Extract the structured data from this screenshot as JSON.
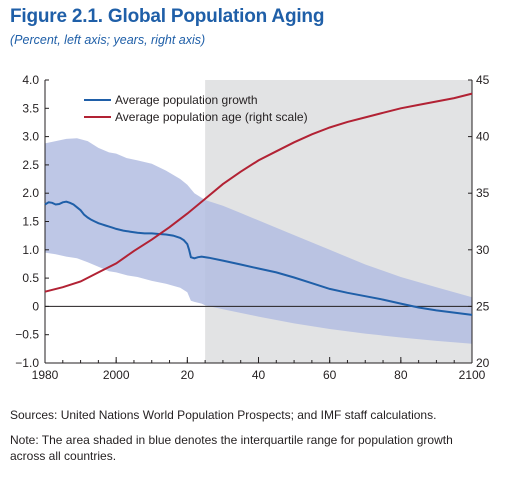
{
  "title": "Figure 2.1.  Global Population Aging",
  "subtitle": "(Percent, left axis; years, right axis)",
  "sources": "Sources: United Nations World Population Prospects; and IMF staff calculations.",
  "note": "Note: The area shaded in blue denotes the interquartile range for population growth across all countries.",
  "colors": {
    "growth": "#1f5fa8",
    "age": "#b22234",
    "band": "#b3bde2",
    "projection_shade": "#e2e3e4",
    "zero_line": "#231f20"
  },
  "chart_data": {
    "type": "line",
    "x_start": 1980,
    "x_end": 2100,
    "projection_start": 2025,
    "x_ticks": [
      {
        "x": 1980,
        "label": "1980"
      },
      {
        "x": 2000,
        "label": "2000"
      },
      {
        "x": 2020,
        "label": "20"
      },
      {
        "x": 2040,
        "label": "40"
      },
      {
        "x": 2060,
        "label": "60"
      },
      {
        "x": 2080,
        "label": "80"
      },
      {
        "x": 2100,
        "label": "2100"
      }
    ],
    "y_left": {
      "min": -1.0,
      "max": 4.0,
      "ticks": [
        {
          "v": 4.0,
          "label": "4.0"
        },
        {
          "v": 3.5,
          "label": "3.5"
        },
        {
          "v": 3.0,
          "label": "3.0"
        },
        {
          "v": 2.5,
          "label": "2.5"
        },
        {
          "v": 2.0,
          "label": "2.0"
        },
        {
          "v": 1.5,
          "label": "1.5"
        },
        {
          "v": 1.0,
          "label": "1.0"
        },
        {
          "v": 0.5,
          "label": "0.5"
        },
        {
          "v": 0,
          "label": "0"
        },
        {
          "v": -0.5,
          "label": "−0.5"
        },
        {
          "v": -1.0,
          "label": "−1.0"
        }
      ]
    },
    "y_right": {
      "min": 20,
      "max": 45,
      "ticks": [
        {
          "v": 45,
          "label": "45"
        },
        {
          "v": 40,
          "label": "40"
        },
        {
          "v": 35,
          "label": "35"
        },
        {
          "v": 30,
          "label": "30"
        },
        {
          "v": 25,
          "label": "25"
        },
        {
          "v": 20,
          "label": "20"
        }
      ]
    },
    "legend": {
      "placement": "top-left"
    },
    "series": [
      {
        "name": "Average population growth",
        "axis": "left",
        "points": [
          [
            1980,
            1.8
          ],
          [
            1981,
            1.84
          ],
          [
            1982,
            1.83
          ],
          [
            1983,
            1.8
          ],
          [
            1984,
            1.81
          ],
          [
            1985,
            1.84
          ],
          [
            1986,
            1.85
          ],
          [
            1987,
            1.83
          ],
          [
            1988,
            1.8
          ],
          [
            1989,
            1.75
          ],
          [
            1990,
            1.7
          ],
          [
            1991,
            1.62
          ],
          [
            1992,
            1.57
          ],
          [
            1993,
            1.53
          ],
          [
            1994,
            1.5
          ],
          [
            1995,
            1.47
          ],
          [
            1996,
            1.45
          ],
          [
            1997,
            1.43
          ],
          [
            1998,
            1.41
          ],
          [
            1999,
            1.39
          ],
          [
            2000,
            1.37
          ],
          [
            2002,
            1.34
          ],
          [
            2004,
            1.32
          ],
          [
            2006,
            1.3
          ],
          [
            2008,
            1.29
          ],
          [
            2010,
            1.29
          ],
          [
            2012,
            1.28
          ],
          [
            2014,
            1.27
          ],
          [
            2016,
            1.25
          ],
          [
            2018,
            1.21
          ],
          [
            2019,
            1.17
          ],
          [
            2020,
            1.1
          ],
          [
            2020.5,
            1.0
          ],
          [
            2021,
            0.87
          ],
          [
            2022,
            0.85
          ],
          [
            2023,
            0.87
          ],
          [
            2024,
            0.88
          ],
          [
            2026,
            0.86
          ],
          [
            2030,
            0.81
          ],
          [
            2035,
            0.74
          ],
          [
            2040,
            0.67
          ],
          [
            2045,
            0.6
          ],
          [
            2050,
            0.51
          ],
          [
            2055,
            0.41
          ],
          [
            2060,
            0.31
          ],
          [
            2065,
            0.24
          ],
          [
            2070,
            0.18
          ],
          [
            2075,
            0.12
          ],
          [
            2080,
            0.05
          ],
          [
            2085,
            -0.02
          ],
          [
            2090,
            -0.07
          ],
          [
            2095,
            -0.11
          ],
          [
            2100,
            -0.15
          ]
        ]
      },
      {
        "name": "Average population age (right scale)",
        "axis": "right",
        "points": [
          [
            1980,
            26.3
          ],
          [
            1985,
            26.7
          ],
          [
            1990,
            27.2
          ],
          [
            1995,
            28.0
          ],
          [
            2000,
            28.8
          ],
          [
            2005,
            29.9
          ],
          [
            2010,
            30.9
          ],
          [
            2015,
            32.0
          ],
          [
            2020,
            33.2
          ],
          [
            2025,
            34.5
          ],
          [
            2030,
            35.8
          ],
          [
            2035,
            36.9
          ],
          [
            2040,
            37.9
          ],
          [
            2045,
            38.7
          ],
          [
            2050,
            39.5
          ],
          [
            2055,
            40.2
          ],
          [
            2060,
            40.8
          ],
          [
            2065,
            41.3
          ],
          [
            2070,
            41.7
          ],
          [
            2075,
            42.1
          ],
          [
            2080,
            42.5
          ],
          [
            2085,
            42.8
          ],
          [
            2090,
            43.1
          ],
          [
            2095,
            43.4
          ],
          [
            2100,
            43.8
          ]
        ]
      }
    ],
    "band": {
      "name": "Interquartile range for population growth",
      "axis": "left",
      "upper": [
        [
          1980,
          2.88
        ],
        [
          1983,
          2.92
        ],
        [
          1986,
          2.96
        ],
        [
          1989,
          2.97
        ],
        [
          1992,
          2.92
        ],
        [
          1995,
          2.8
        ],
        [
          1998,
          2.72
        ],
        [
          2000,
          2.7
        ],
        [
          2003,
          2.62
        ],
        [
          2006,
          2.58
        ],
        [
          2010,
          2.52
        ],
        [
          2014,
          2.4
        ],
        [
          2018,
          2.25
        ],
        [
          2020,
          2.15
        ],
        [
          2022,
          2.0
        ],
        [
          2025,
          1.88
        ],
        [
          2030,
          1.78
        ],
        [
          2035,
          1.65
        ],
        [
          2040,
          1.52
        ],
        [
          2050,
          1.26
        ],
        [
          2060,
          1.0
        ],
        [
          2070,
          0.74
        ],
        [
          2080,
          0.52
        ],
        [
          2090,
          0.34
        ],
        [
          2100,
          0.16
        ]
      ],
      "lower": [
        [
          1980,
          0.95
        ],
        [
          1983,
          0.92
        ],
        [
          1986,
          0.88
        ],
        [
          1989,
          0.85
        ],
        [
          1992,
          0.78
        ],
        [
          1995,
          0.7
        ],
        [
          1998,
          0.62
        ],
        [
          2000,
          0.6
        ],
        [
          2003,
          0.55
        ],
        [
          2006,
          0.52
        ],
        [
          2010,
          0.45
        ],
        [
          2014,
          0.4
        ],
        [
          2018,
          0.33
        ],
        [
          2020,
          0.25
        ],
        [
          2021,
          0.1
        ],
        [
          2022,
          0.08
        ],
        [
          2024,
          0.05
        ],
        [
          2025,
          0.02
        ],
        [
          2030,
          -0.05
        ],
        [
          2040,
          -0.18
        ],
        [
          2050,
          -0.3
        ],
        [
          2060,
          -0.4
        ],
        [
          2070,
          -0.48
        ],
        [
          2080,
          -0.55
        ],
        [
          2090,
          -0.61
        ],
        [
          2100,
          -0.66
        ]
      ]
    }
  }
}
